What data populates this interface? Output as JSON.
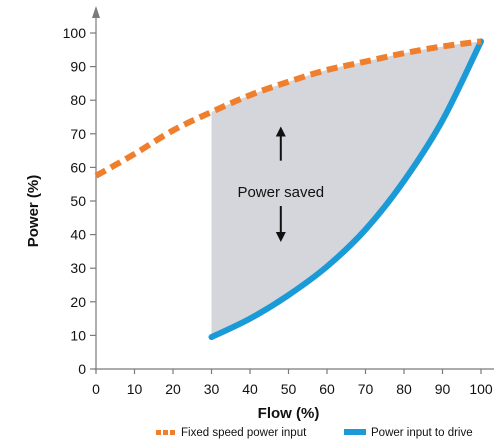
{
  "chart_data": {
    "type": "line",
    "title": "",
    "xlabel": "Flow (%)",
    "ylabel": "Power (%)",
    "xlim": [
      0,
      100
    ],
    "ylim": [
      0,
      100
    ],
    "x_ticks": [
      0,
      10,
      20,
      30,
      40,
      50,
      60,
      70,
      80,
      90,
      100
    ],
    "y_ticks": [
      0,
      10,
      20,
      30,
      40,
      50,
      60,
      70,
      80,
      90,
      100
    ],
    "grid": false,
    "legend_placement": "bottom",
    "series": [
      {
        "name": "Fixed speed power input",
        "style": "dashed",
        "color": "#f07f2d",
        "x": [
          0,
          10,
          20,
          30,
          40,
          50,
          60,
          70,
          80,
          90,
          100
        ],
        "y": [
          57.5,
          64,
          71,
          76.5,
          81.5,
          85.5,
          89,
          91.5,
          94,
          96,
          97.5
        ]
      },
      {
        "name": "Power input to drive",
        "style": "solid",
        "color": "#1a9ad6",
        "x": [
          30,
          40,
          50,
          60,
          70,
          80,
          90,
          100
        ],
        "y": [
          9.5,
          15,
          22,
          30.5,
          41.5,
          56,
          74,
          97.5
        ]
      }
    ],
    "shaded_region": {
      "label": "Power saved",
      "x_range": [
        30,
        100
      ],
      "color": "#d4d6db"
    },
    "annotations": [
      {
        "text": "Power saved"
      }
    ]
  }
}
